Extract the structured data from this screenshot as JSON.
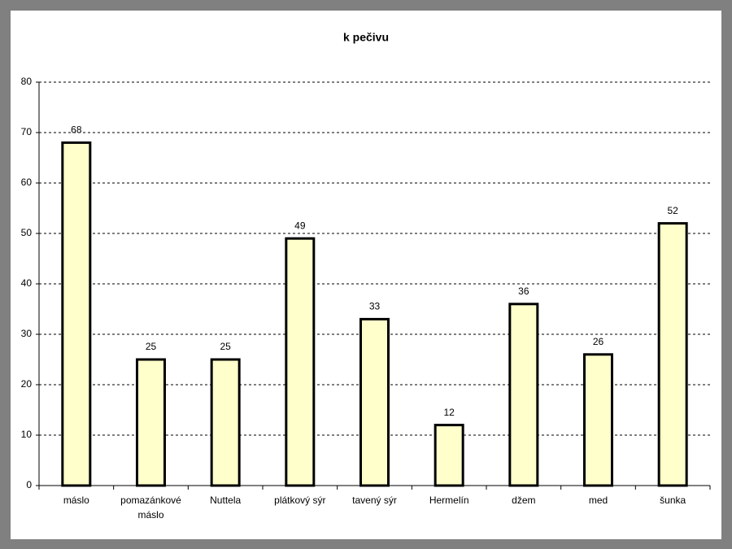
{
  "chart_data": {
    "type": "bar",
    "title": "k pečivu",
    "categories": [
      "máslo",
      "pomazánkové máslo",
      "Nuttela",
      "plátkový sýr",
      "tavený sýr",
      "Hermelín",
      "džem",
      "med",
      "šunka"
    ],
    "values": [
      68,
      25,
      25,
      49,
      33,
      12,
      36,
      26,
      52
    ],
    "color": "#ffffcc",
    "ylim": [
      0,
      80
    ],
    "yticks": [
      0,
      10,
      20,
      30,
      40,
      50,
      60,
      70,
      80
    ],
    "grid": true
  }
}
